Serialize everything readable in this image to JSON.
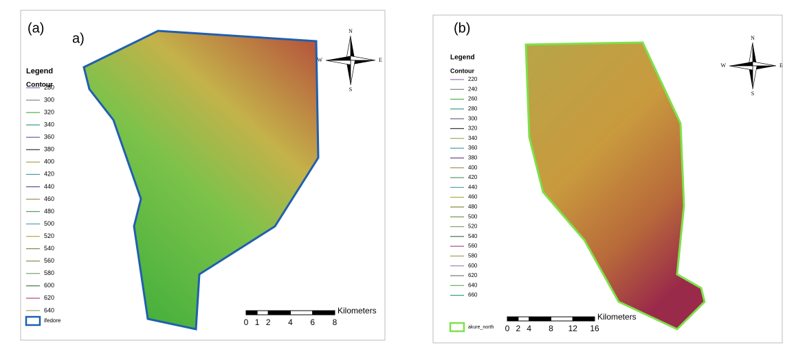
{
  "panels": [
    {
      "label": "(a)",
      "sublabel": "a)",
      "legend": {
        "title": "Legend",
        "subtitle": "Contour",
        "items": [
          280,
          300,
          320,
          340,
          360,
          380,
          400,
          420,
          440,
          460,
          480,
          500,
          520,
          540,
          560,
          580,
          600,
          620,
          640
        ],
        "boundary": "ifedore"
      },
      "scale": {
        "ticks": [
          0,
          1,
          2,
          4,
          6,
          8
        ],
        "unit": "Kilometers"
      },
      "compass": {
        "n": "N",
        "e": "E",
        "s": "S",
        "w": "W"
      }
    },
    {
      "label": "(b)",
      "legend": {
        "title": "Legend",
        "subtitle": "Contour",
        "items": [
          220,
          240,
          260,
          280,
          300,
          320,
          340,
          360,
          380,
          400,
          420,
          440,
          460,
          480,
          500,
          520,
          540,
          560,
          580,
          600,
          620,
          640,
          660
        ],
        "boundary": "akure_north"
      },
      "scale": {
        "ticks": [
          0,
          2,
          4,
          8,
          12,
          16
        ],
        "unit": "Kilometers"
      },
      "compass": {
        "n": "N",
        "e": "E",
        "s": "S",
        "w": "W"
      }
    }
  ]
}
